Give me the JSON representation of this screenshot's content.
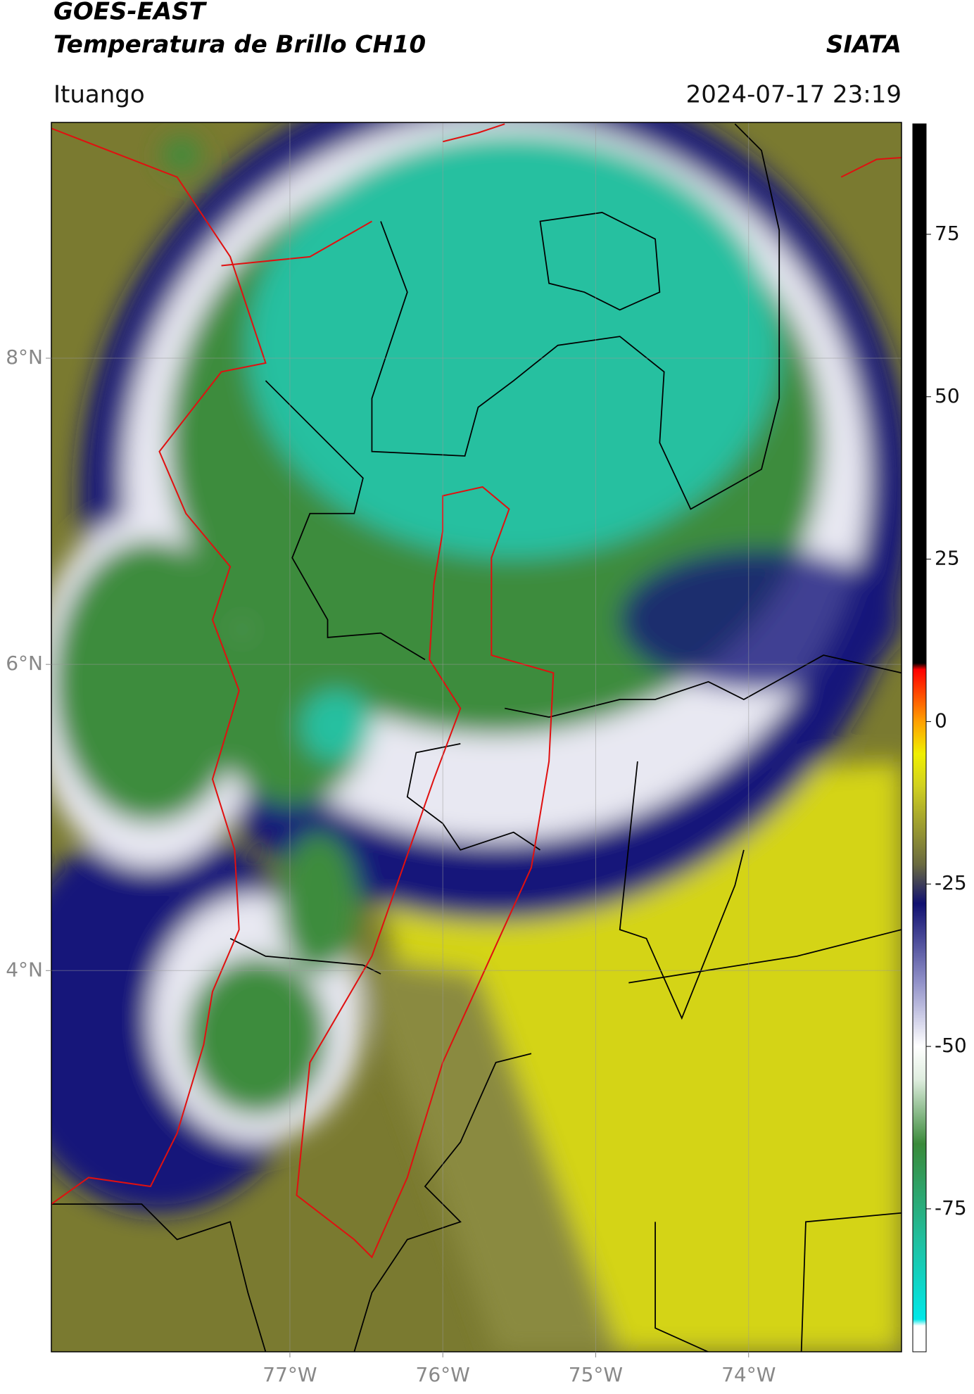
{
  "header": {
    "title": "GOES-EAST",
    "subtitle": "Temperatura de Brillo CH10",
    "brand": "SIATA",
    "location": "Ituango",
    "datetime": "2024-07-17 23:19"
  },
  "map": {
    "xlim": [
      -78.56,
      -73.0
    ],
    "ylim": [
      1.51,
      9.54
    ],
    "xticks": [
      {
        "value": -77,
        "label": "77°W"
      },
      {
        "value": -76,
        "label": "76°W"
      },
      {
        "value": -75,
        "label": "75°W"
      },
      {
        "value": -74,
        "label": "74°W"
      }
    ],
    "yticks": [
      {
        "value": 4,
        "label": "4°N"
      },
      {
        "value": 6,
        "label": "6°N"
      },
      {
        "value": 8,
        "label": "8°N"
      }
    ],
    "grid": true
  },
  "colorbar": {
    "clim": [
      -97,
      92
    ],
    "ticks": [
      -75,
      -50,
      -25,
      0,
      25,
      50,
      75
    ],
    "stops": [
      {
        "value": -97,
        "color": "#ffffff"
      },
      {
        "value": -93,
        "color": "#ffffff"
      },
      {
        "value": -92,
        "color": "#00e8e8"
      },
      {
        "value": -80,
        "color": "#20c0a0"
      },
      {
        "value": -65,
        "color": "#3a8a3a"
      },
      {
        "value": -55,
        "color": "#e0eee0"
      },
      {
        "value": -50,
        "color": "#ffffff"
      },
      {
        "value": -40,
        "color": "#9090c8"
      },
      {
        "value": -28,
        "color": "#101070"
      },
      {
        "value": -22,
        "color": "#6a6a40"
      },
      {
        "value": -10,
        "color": "#d0d020"
      },
      {
        "value": -5,
        "color": "#f0f000"
      },
      {
        "value": 0,
        "color": "#ffa000"
      },
      {
        "value": 8,
        "color": "#ff0000"
      },
      {
        "value": 9,
        "color": "#000000"
      },
      {
        "value": 92,
        "color": "#000000"
      }
    ]
  }
}
